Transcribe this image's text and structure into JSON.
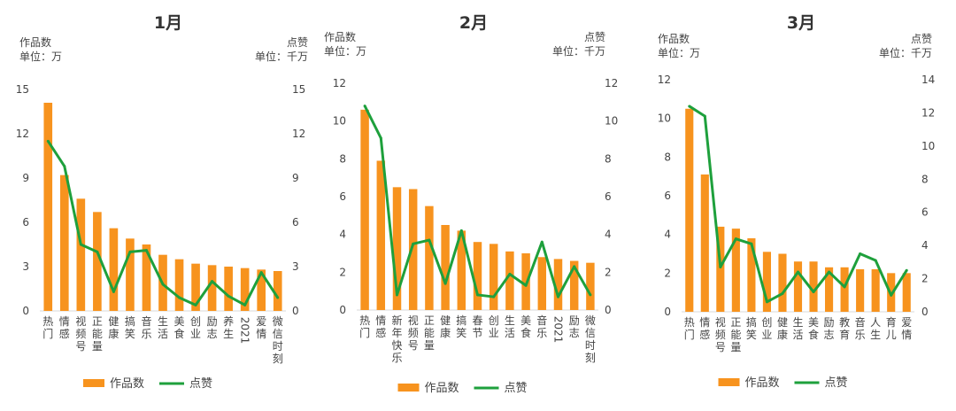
{
  "colors": {
    "bar": "#f7931e",
    "line": "#1ea03c",
    "axis": "#d9d9d9",
    "text": "#444444"
  },
  "chart_data": [
    {
      "type": "bar",
      "title": "1月",
      "left_axis_title": "作品数",
      "left_axis_unit": "单位：万",
      "right_axis_title": "点赞",
      "right_axis_unit": "单位：千万",
      "categories": [
        "热门",
        "情感",
        "视频号",
        "正能量",
        "健康",
        "搞笑",
        "音乐",
        "生活",
        "美食",
        "创业",
        "励志",
        "养生",
        "2021",
        "爱情",
        "微信时刻"
      ],
      "series": [
        {
          "name": "作品数",
          "type": "bar",
          "axis": "left",
          "values": [
            14.1,
            9.2,
            7.6,
            6.7,
            5.6,
            4.9,
            4.5,
            3.8,
            3.5,
            3.2,
            3.1,
            3.0,
            2.9,
            2.8,
            2.7
          ]
        },
        {
          "name": "点赞",
          "type": "line",
          "axis": "right",
          "values": [
            11.5,
            9.8,
            4.5,
            4.0,
            1.3,
            4.0,
            4.1,
            1.8,
            0.9,
            0.4,
            2.0,
            1.0,
            0.4,
            2.6,
            0.9
          ]
        }
      ],
      "ylim_left": [
        0,
        15
      ],
      "yticks_left": [
        0,
        3,
        6,
        9,
        12,
        15
      ],
      "ylim_right": [
        0,
        15
      ],
      "yticks_right": [
        0,
        3,
        6,
        9,
        12,
        15
      ],
      "legend": [
        "作品数",
        "点赞"
      ]
    },
    {
      "type": "bar",
      "title": "2月",
      "left_axis_title": "作品数",
      "left_axis_unit": "单位：万",
      "right_axis_title": "点赞",
      "right_axis_unit": "单位：千万",
      "categories": [
        "热门",
        "情感",
        "新年快乐",
        "视频号",
        "正能量",
        "健康",
        "搞笑",
        "春节",
        "创业",
        "生活",
        "美食",
        "音乐",
        "2021",
        "励志",
        "微信时刻"
      ],
      "series": [
        {
          "name": "作品数",
          "type": "bar",
          "axis": "left",
          "values": [
            10.6,
            7.9,
            6.5,
            6.4,
            5.5,
            4.5,
            4.2,
            3.6,
            3.5,
            3.1,
            3.0,
            2.8,
            2.7,
            2.6,
            2.5
          ]
        },
        {
          "name": "点赞",
          "type": "line",
          "axis": "right",
          "values": [
            10.8,
            9.1,
            0.8,
            3.5,
            3.7,
            1.4,
            4.2,
            0.8,
            0.7,
            1.9,
            1.3,
            3.6,
            0.7,
            2.3,
            0.8
          ]
        }
      ],
      "ylim_left": [
        0,
        12
      ],
      "yticks_left": [
        0,
        2,
        4,
        6,
        8,
        10,
        12
      ],
      "ylim_right": [
        0,
        12
      ],
      "yticks_right": [
        0,
        2,
        4,
        6,
        8,
        10,
        12
      ],
      "legend": [
        "作品数",
        "点赞"
      ]
    },
    {
      "type": "bar",
      "title": "3月",
      "left_axis_title": "作品数",
      "left_axis_unit": "单位：万",
      "right_axis_title": "点赞",
      "right_axis_unit": "单位：千万",
      "categories": [
        "热门",
        "情感",
        "视频号",
        "正能量",
        "搞笑",
        "创业",
        "健康",
        "生活",
        "美食",
        "励志",
        "教育",
        "音乐",
        "人生",
        "育儿",
        "爱情"
      ],
      "series": [
        {
          "name": "作品数",
          "type": "bar",
          "axis": "left",
          "values": [
            10.5,
            7.1,
            4.4,
            4.3,
            3.8,
            3.1,
            3.0,
            2.6,
            2.6,
            2.3,
            2.3,
            2.2,
            2.2,
            2.0,
            2.0
          ]
        },
        {
          "name": "点赞",
          "type": "line",
          "axis": "right",
          "values": [
            12.4,
            11.8,
            2.7,
            4.4,
            4.1,
            0.6,
            1.1,
            2.4,
            1.2,
            2.4,
            1.5,
            3.5,
            3.1,
            1.0,
            2.5
          ]
        }
      ],
      "ylim_left": [
        0,
        12
      ],
      "yticks_left": [
        0,
        2,
        4,
        6,
        8,
        10,
        12
      ],
      "ylim_right": [
        0,
        14
      ],
      "yticks_right": [
        0,
        2,
        4,
        6,
        8,
        10,
        12,
        14
      ],
      "legend": [
        "作品数",
        "点赞"
      ]
    }
  ]
}
